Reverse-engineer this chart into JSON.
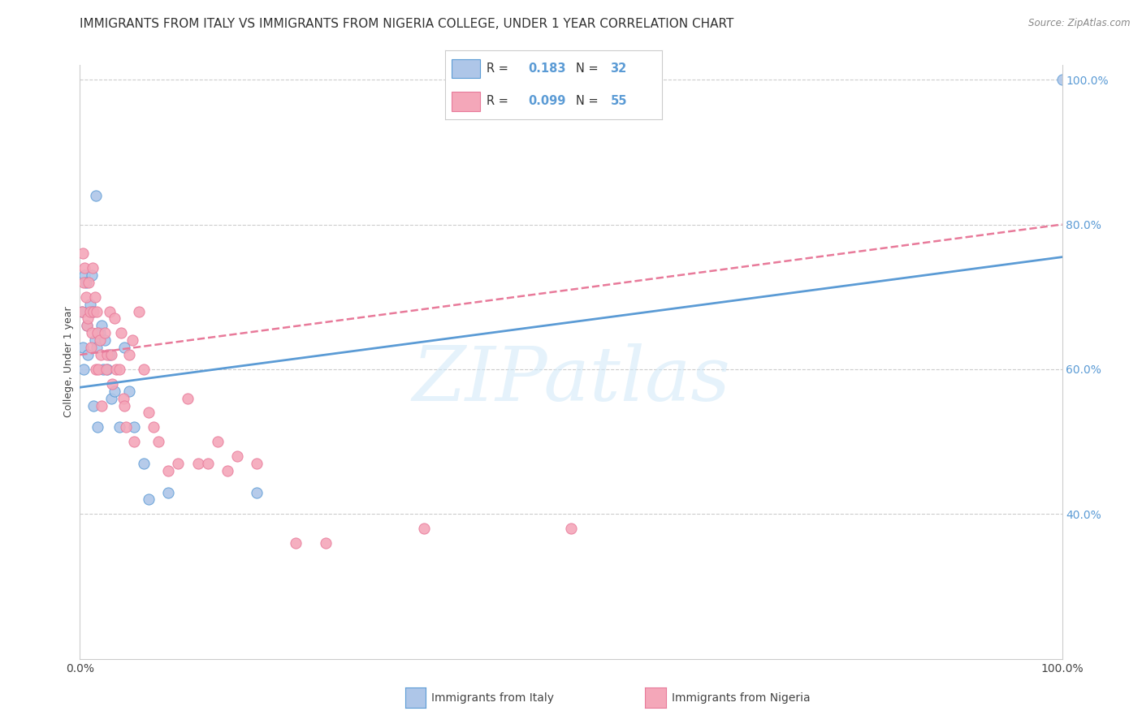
{
  "title": "IMMIGRANTS FROM ITALY VS IMMIGRANTS FROM NIGERIA COLLEGE, UNDER 1 YEAR CORRELATION CHART",
  "source": "Source: ZipAtlas.com",
  "ylabel": "College, Under 1 year",
  "italy_color": "#aec6e8",
  "nigeria_color": "#f4a7b9",
  "italy_line_color": "#5b9bd5",
  "nigeria_line_color": "#e87a9a",
  "watermark_text": "ZIPatlas",
  "legend_R_italy": "0.183",
  "legend_N_italy": "32",
  "legend_R_nigeria": "0.099",
  "legend_N_nigeria": "55",
  "italy_scatter_x": [
    0.002,
    0.003,
    0.004,
    0.005,
    0.006,
    0.007,
    0.008,
    0.01,
    0.012,
    0.013,
    0.014,
    0.015,
    0.016,
    0.017,
    0.018,
    0.02,
    0.022,
    0.024,
    0.025,
    0.028,
    0.03,
    0.032,
    0.035,
    0.04,
    0.045,
    0.05,
    0.055,
    0.065,
    0.07,
    0.09,
    0.18,
    1.0
  ],
  "italy_scatter_y": [
    0.68,
    0.63,
    0.6,
    0.73,
    0.72,
    0.66,
    0.62,
    0.69,
    0.73,
    0.68,
    0.55,
    0.64,
    0.84,
    0.63,
    0.52,
    0.65,
    0.66,
    0.6,
    0.64,
    0.6,
    0.62,
    0.56,
    0.57,
    0.52,
    0.63,
    0.57,
    0.52,
    0.47,
    0.42,
    0.43,
    0.43,
    1.0
  ],
  "nigeria_scatter_x": [
    0.002,
    0.003,
    0.004,
    0.005,
    0.006,
    0.007,
    0.008,
    0.009,
    0.01,
    0.011,
    0.012,
    0.013,
    0.014,
    0.015,
    0.016,
    0.017,
    0.018,
    0.019,
    0.02,
    0.021,
    0.022,
    0.025,
    0.027,
    0.028,
    0.03,
    0.032,
    0.033,
    0.035,
    0.037,
    0.04,
    0.042,
    0.044,
    0.045,
    0.047,
    0.05,
    0.053,
    0.055,
    0.06,
    0.065,
    0.07,
    0.075,
    0.08,
    0.09,
    0.1,
    0.11,
    0.12,
    0.13,
    0.14,
    0.15,
    0.16,
    0.18,
    0.22,
    0.25,
    0.35,
    0.5
  ],
  "nigeria_scatter_y": [
    0.68,
    0.76,
    0.72,
    0.74,
    0.7,
    0.66,
    0.67,
    0.72,
    0.68,
    0.63,
    0.65,
    0.74,
    0.68,
    0.7,
    0.6,
    0.68,
    0.65,
    0.6,
    0.64,
    0.62,
    0.55,
    0.65,
    0.6,
    0.62,
    0.68,
    0.62,
    0.58,
    0.67,
    0.6,
    0.6,
    0.65,
    0.56,
    0.55,
    0.52,
    0.62,
    0.64,
    0.5,
    0.68,
    0.6,
    0.54,
    0.52,
    0.5,
    0.46,
    0.47,
    0.56,
    0.47,
    0.47,
    0.5,
    0.46,
    0.48,
    0.47,
    0.36,
    0.36,
    0.38,
    0.38
  ],
  "xlim": [
    0.0,
    1.0
  ],
  "ylim": [
    0.2,
    1.02
  ],
  "italy_trend_x0": 0.0,
  "italy_trend_x1": 1.0,
  "italy_trend_y0": 0.575,
  "italy_trend_y1": 0.755,
  "nigeria_trend_x0": 0.0,
  "nigeria_trend_x1": 1.0,
  "nigeria_trend_y0": 0.62,
  "nigeria_trend_y1": 0.8,
  "right_ytick_labels": [
    "100.0%",
    "80.0%",
    "60.0%",
    "40.0%"
  ],
  "right_ytick_values": [
    1.0,
    0.8,
    0.6,
    0.4
  ],
  "grid_ytick_values": [
    0.4,
    0.6,
    0.8,
    1.0
  ],
  "xtick_values": [
    0.0,
    0.2,
    0.4,
    0.6,
    0.8,
    1.0
  ],
  "xtick_labels": [
    "0.0%",
    "",
    "",
    "",
    "",
    "100.0%"
  ],
  "background_color": "#ffffff",
  "grid_color": "#cccccc",
  "title_fontsize": 11,
  "axis_label_fontsize": 9,
  "tick_fontsize": 10,
  "scatter_size": 90
}
